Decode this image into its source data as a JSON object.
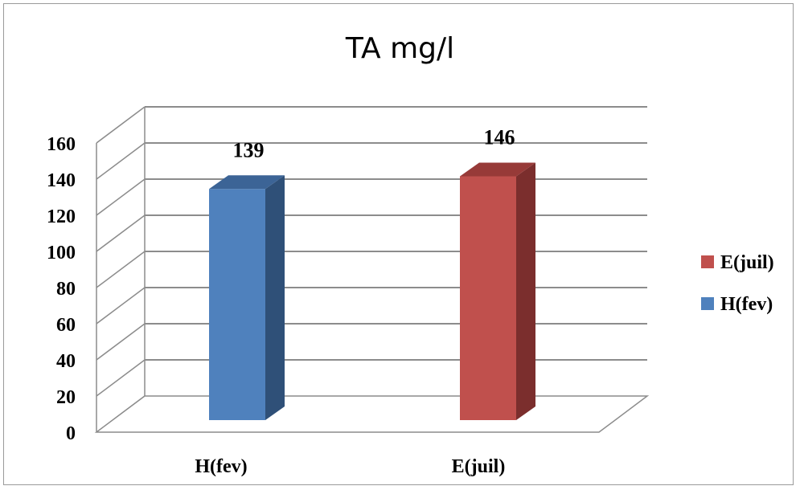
{
  "chart_data": {
    "type": "bar",
    "title": "TA mg/l",
    "categories": [
      "H(fev)",
      "E(juil)"
    ],
    "series": [
      {
        "name": "H(fev)",
        "values": [
          139,
          null
        ],
        "color": "#4F81BD",
        "side_color": "#2F5078",
        "top_color": "#3C6496"
      },
      {
        "name": "E(juil)",
        "values": [
          null,
          146
        ],
        "color": "#C0504D",
        "side_color": "#7B2E2D",
        "top_color": "#973A38"
      }
    ],
    "data_labels": [
      "139",
      "146"
    ],
    "yticks": [
      "0",
      "20",
      "40",
      "60",
      "80",
      "100",
      "120",
      "140",
      "160"
    ],
    "ylim": [
      0,
      160
    ],
    "xlabel": "",
    "ylabel": "",
    "grid": true,
    "legend_position": "right",
    "legend_items": [
      {
        "label": "E(juil)",
        "color": "#C0504D"
      },
      {
        "label": "H(fev)",
        "color": "#4F81BD"
      }
    ]
  }
}
